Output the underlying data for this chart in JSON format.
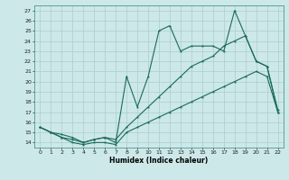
{
  "xlabel": "Humidex (Indice chaleur)",
  "background_color": "#cde8e8",
  "grid_color": "#aacece",
  "line_color": "#1a6b5a",
  "xlim": [
    -0.5,
    22.5
  ],
  "ylim": [
    13.5,
    27.5
  ],
  "yticks": [
    14,
    15,
    16,
    17,
    18,
    19,
    20,
    21,
    22,
    23,
    24,
    25,
    26,
    27
  ],
  "xticks": [
    0,
    1,
    2,
    3,
    4,
    5,
    6,
    7,
    8,
    9,
    10,
    11,
    12,
    13,
    14,
    15,
    16,
    17,
    18,
    19,
    20,
    21,
    22
  ],
  "series1_x": [
    0,
    1,
    2,
    3,
    4,
    5,
    6,
    7,
    8,
    9,
    10,
    11,
    12,
    13,
    14,
    15,
    16,
    17,
    18,
    19,
    20,
    21,
    22
  ],
  "series1_y": [
    15.5,
    15.0,
    14.5,
    14.0,
    13.8,
    14.0,
    14.0,
    13.8,
    15.0,
    15.5,
    16.0,
    16.5,
    17.0,
    17.5,
    18.0,
    18.5,
    19.0,
    19.5,
    20.0,
    20.5,
    21.0,
    20.5,
    17.0
  ],
  "series2_x": [
    0,
    1,
    2,
    3,
    4,
    5,
    6,
    7,
    8,
    9,
    10,
    11,
    12,
    13,
    14,
    15,
    16,
    17,
    18,
    19,
    20,
    21,
    22
  ],
  "series2_y": [
    15.5,
    15.0,
    14.5,
    14.3,
    14.0,
    14.3,
    14.5,
    14.0,
    20.5,
    17.5,
    20.5,
    25.0,
    25.5,
    23.0,
    23.5,
    23.5,
    23.5,
    23.0,
    27.0,
    24.5,
    22.0,
    21.5,
    17.0
  ],
  "series3_x": [
    0,
    1,
    2,
    3,
    4,
    5,
    6,
    7,
    8,
    9,
    10,
    11,
    12,
    13,
    14,
    15,
    16,
    17,
    18,
    19,
    20,
    21,
    22
  ],
  "series3_y": [
    15.5,
    15.0,
    14.8,
    14.5,
    14.0,
    14.3,
    14.5,
    14.3,
    15.5,
    16.5,
    17.5,
    18.5,
    19.5,
    20.5,
    21.5,
    22.0,
    22.5,
    23.5,
    24.0,
    24.5,
    22.0,
    21.5,
    17.2
  ]
}
